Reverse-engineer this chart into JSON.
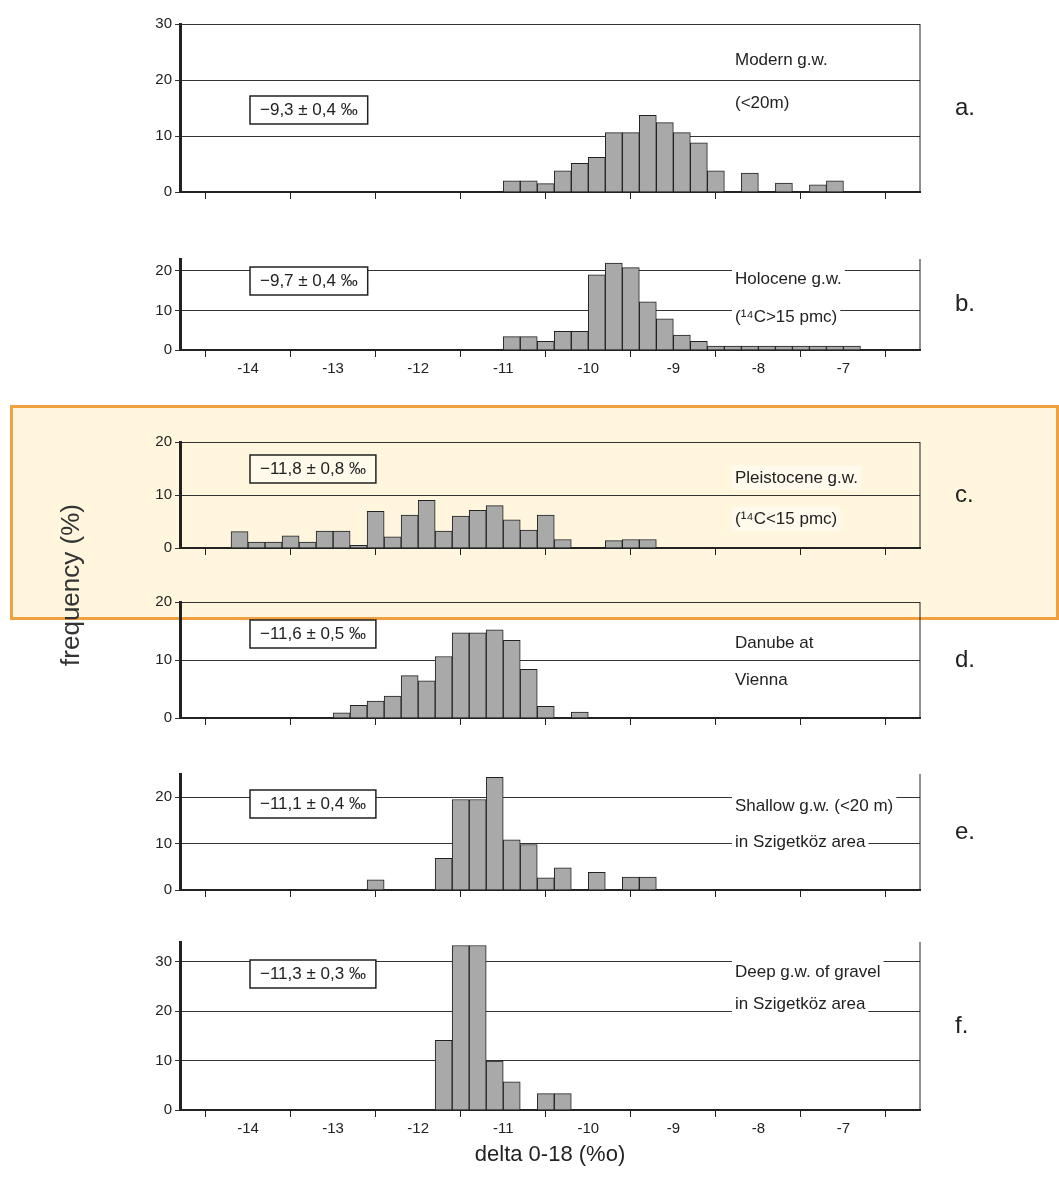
{
  "chart_data": [
    {
      "type": "histogram",
      "bins": [
        -11,
        -10.8,
        -10.6,
        -10.4,
        -10.2,
        -10,
        -9.8,
        -9.6,
        -9.4,
        -9.2,
        -9,
        -8.8,
        -8.6,
        -8.4,
        -8.2,
        -8,
        -7.8,
        -7.6,
        -7.4,
        -7.2,
        -7
      ],
      "values": [
        2,
        2,
        1.5,
        3.8,
        5.1,
        6.2,
        10.6,
        10.6,
        13.7,
        12.4,
        10.6,
        8.8,
        3.8,
        0,
        3.4,
        0,
        1.6,
        0,
        1.3,
        2
      ],
      "color": "#a9a9a9",
      "xlim": [
        -14.8,
        -6.1
      ],
      "xticks": [
        -14,
        -13,
        -12,
        -11,
        -10,
        -9,
        -8,
        -7
      ],
      "ylim": [
        0,
        30
      ],
      "yticks": [
        0,
        10,
        20,
        30
      ],
      "grid": "y",
      "tick_labels": "y",
      "annotations": [
        "−9,3 ± 0,4 ‰",
        "Modern g.w.",
        "(<20m)",
        "a."
      ]
    },
    {
      "type": "histogram",
      "bins": [
        -11,
        -10.8,
        -10.6,
        -10.4,
        -10.2,
        -10,
        -9.8,
        -9.6,
        -9.4,
        -9.2,
        -9,
        -8.8,
        -8.6,
        -8.4,
        -8.2,
        -8,
        -7.8,
        -7.6,
        -7.4,
        -7.2,
        -7,
        -6.8
      ],
      "values": [
        3.4,
        3.4,
        2.2,
        4.7,
        4.7,
        19,
        22,
        20.8,
        12.2,
        7.9,
        3.8,
        2.2,
        1,
        1,
        1,
        1,
        1,
        1,
        1,
        1,
        1
      ],
      "color": "#a9a9a9",
      "xlim": [
        -14.8,
        -6.1
      ],
      "xticks": [
        -14,
        -13,
        -12,
        -11,
        -10,
        -9,
        -8,
        -7
      ],
      "ylim": [
        0,
        23
      ],
      "yticks": [
        0,
        10,
        20
      ],
      "grid": "y",
      "annotations": [
        "−9,7 ± 0,4 ‰",
        "Holocene g.w.",
        "(¹⁴C>15 pmc)",
        "b."
      ]
    },
    {
      "type": "histogram",
      "bins": [
        -14.2,
        -14,
        -13.8,
        -13.6,
        -13.4,
        -13.2,
        -13,
        -12.8,
        -12.6,
        -12.4,
        -12.2,
        -12,
        -11.8,
        -11.6,
        -11.4,
        -11.2,
        -11,
        -10.8,
        -10.6,
        -10.4,
        -10.2,
        -10,
        -9.8,
        -9.6,
        -9.4,
        -9.2
      ],
      "values": [
        3.1,
        1.1,
        1.1,
        2.3,
        1.1,
        3.2,
        3.2,
        0.5,
        6.9,
        2.1,
        6.2,
        9,
        3.2,
        6,
        7.1,
        8,
        5.3,
        3.4,
        6.2,
        1.6,
        0,
        0,
        1.4,
        1.6,
        1.6
      ],
      "color": "#a9a9a9",
      "xlim": [
        -14.8,
        -6.1
      ],
      "xticks": [
        -14,
        -13,
        -12,
        -11,
        -10,
        -9,
        -8,
        -7
      ],
      "ylim": [
        0,
        20
      ],
      "yticks": [
        0,
        10,
        20
      ],
      "grid": "y",
      "tick_labels": "y",
      "ylabel": "frequency (%)",
      "annotations": [
        "−11,8 ± 0,8 ‰",
        "Pleistocene g.w.",
        "(¹⁴C<15 pmc)",
        "c."
      ]
    },
    {
      "type": "histogram",
      "bins": [
        -13,
        -12.8,
        -12.6,
        -12.4,
        -12.2,
        -12,
        -11.8,
        -11.6,
        -11.4,
        -11.2,
        -11,
        -10.8,
        -10.6,
        -10.4,
        -10.2,
        -10
      ],
      "values": [
        0.9,
        2.2,
        2.9,
        3.8,
        7.3,
        6.4,
        10.6,
        14.7,
        14.7,
        15.2,
        13.4,
        8.4,
        2,
        0,
        1
      ],
      "color": "#a9a9a9",
      "xlim": [
        -14.8,
        -6.1
      ],
      "xticks": [
        -14,
        -13,
        -12,
        -11,
        -10,
        -9,
        -8,
        -7
      ],
      "ylim": [
        0,
        20
      ],
      "yticks": [
        0,
        10,
        20
      ],
      "grid": "y",
      "tick_labels": "y",
      "annotations": [
        "−11,6 ± 0,5 ‰",
        "Danube at",
        "Vienna",
        "d."
      ]
    },
    {
      "type": "histogram",
      "bins": [
        -12.6,
        -12.4,
        -12.2,
        -12,
        -11.8,
        -11.6,
        -11.4,
        -11.2,
        -11,
        -10.8,
        -10.6,
        -10.4,
        -10.2,
        -10,
        -9.8,
        -9.6,
        -9.4,
        -9.2
      ],
      "values": [
        2.2,
        0,
        0,
        0,
        6.8,
        19.5,
        19.5,
        24.3,
        10.8,
        9.8,
        2.6,
        4.8,
        0,
        3.8,
        0,
        2.8,
        2.8
      ],
      "color": "#a9a9a9",
      "xlim": [
        -14.8,
        -6.1
      ],
      "xticks": [
        -14,
        -13,
        -12,
        -11,
        -10,
        -9,
        -8,
        -7
      ],
      "ylim": [
        0,
        25
      ],
      "yticks": [
        0,
        10,
        20
      ],
      "grid": "y",
      "tick_labels": "y",
      "annotations": [
        "−11,1 ± 0,4 ‰",
        "Shallow g.w. (<20 m)",
        "in Szigetköz area",
        "e."
      ]
    },
    {
      "type": "histogram",
      "bins": [
        -11.8,
        -11.6,
        -11.4,
        -11.2,
        -11,
        -10.8,
        -10.6,
        -10.4,
        -10.2
      ],
      "values": [
        14.1,
        33.3,
        33.3,
        9.9,
        5.7,
        0,
        3.3,
        3.3
      ],
      "color": "#a9a9a9",
      "xlim": [
        -14.8,
        -6.1
      ],
      "xticks": [
        -14,
        -13,
        -12,
        -11,
        -10,
        -9,
        -8,
        -7
      ],
      "ylim": [
        0,
        34
      ],
      "yticks": [
        0,
        10,
        20,
        30
      ],
      "grid": "y",
      "xlabel": "delta 0-18 (%o)",
      "annotations": [
        "−11,3 ± 0,3 ‰",
        "Deep g.w. of gravel",
        "in Szigetköz area",
        "f."
      ]
    }
  ]
}
